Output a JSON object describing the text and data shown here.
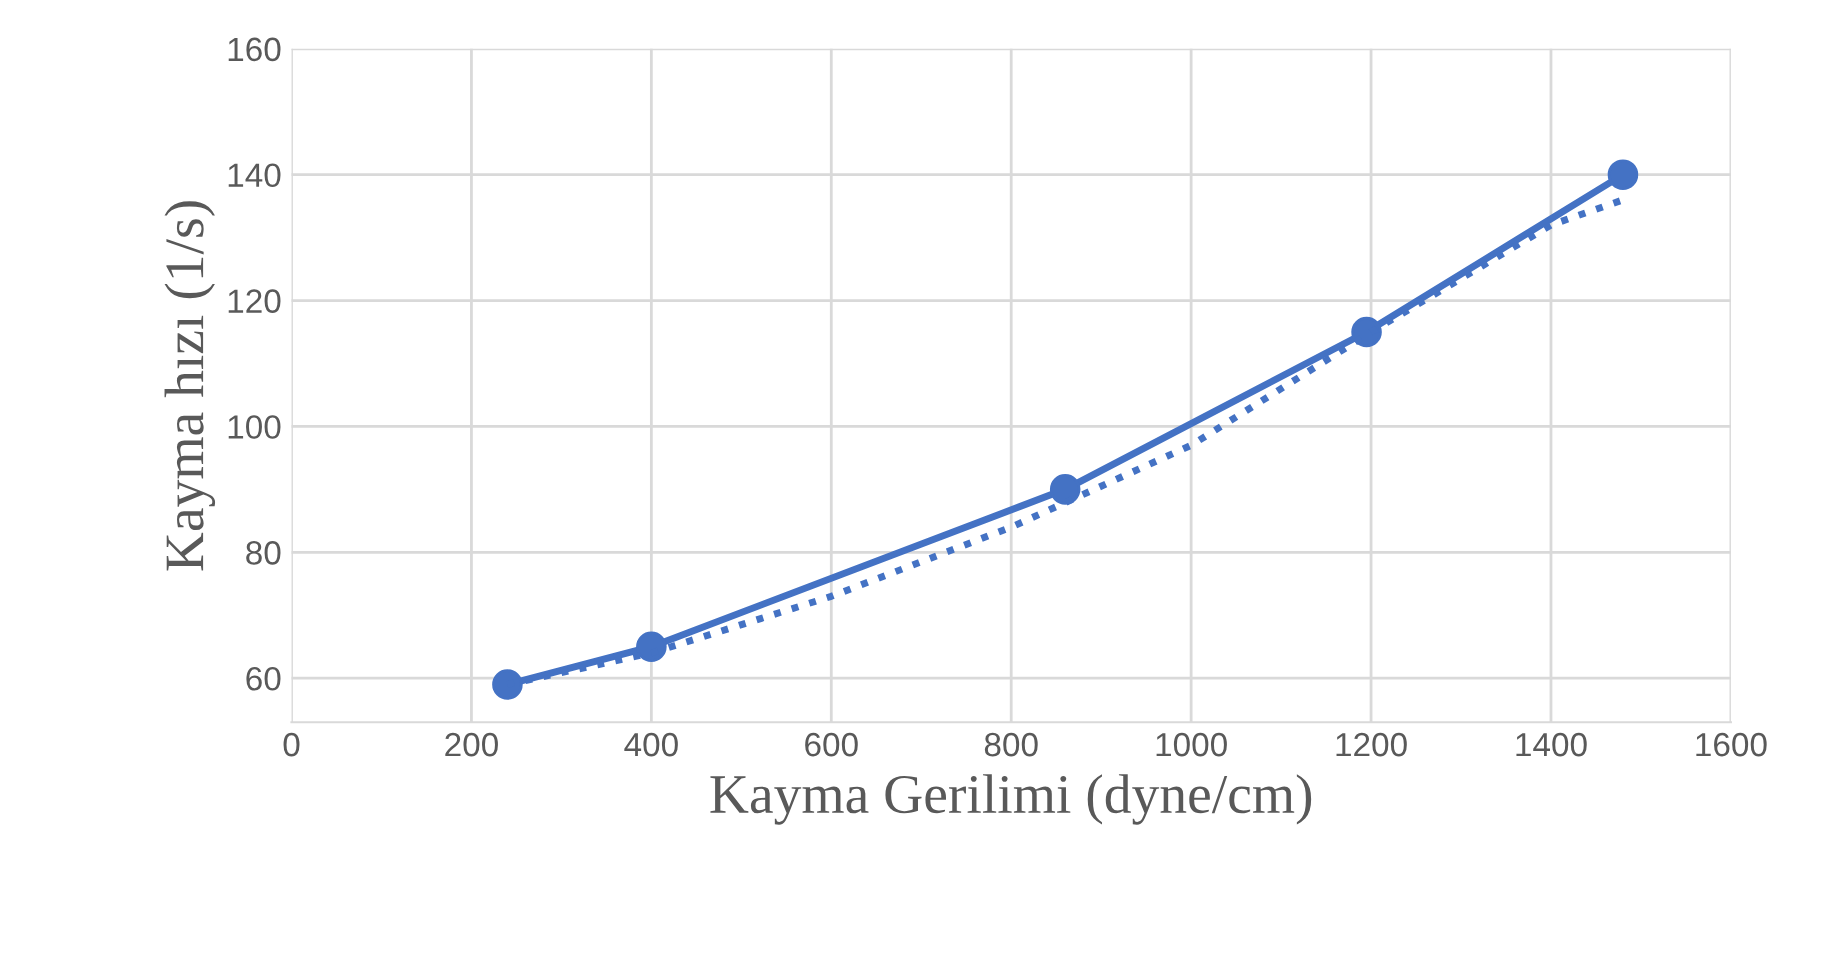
{
  "chart_data": {
    "type": "line",
    "xlabel": "Kayma Gerilimi (dyne/cm)",
    "ylabel": "Kayma hızı (1/s)",
    "xlim": [
      0,
      1600
    ],
    "xticks": [
      0,
      200,
      400,
      600,
      800,
      1000,
      1200,
      1400,
      1600
    ],
    "ylim": [
      53,
      160
    ],
    "yticks": [
      60,
      80,
      100,
      120,
      140,
      160
    ],
    "grid": true,
    "series": [
      {
        "color": "#4472c4",
        "marker": "circle",
        "line_style": "solid",
        "x": [
          240,
          400,
          860,
          1195,
          1480
        ],
        "values": [
          59,
          65,
          90,
          115,
          140
        ]
      },
      {
        "color": "#4472c4",
        "marker": "none",
        "line_style": "dotted",
        "x": [
          240,
          400,
          600,
          800,
          1000,
          1200,
          1400,
          1480
        ],
        "values": [
          59,
          64,
          73,
          84,
          97,
          115,
          132,
          136
        ]
      }
    ]
  }
}
